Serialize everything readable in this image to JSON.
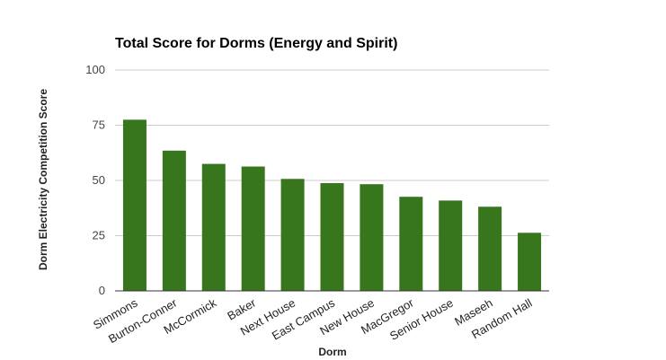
{
  "chart_data": {
    "type": "bar",
    "title": "Total Score for Dorms (Energy and Spirit)",
    "xlabel": "Dorm",
    "ylabel": "Dorm Electricity Competition Score",
    "ylim": [
      0,
      100
    ],
    "yticks": [
      0,
      25,
      50,
      75,
      100
    ],
    "grid": true,
    "legend": "none",
    "categories": [
      "Simmons",
      "Burton-Conner",
      "McCormick",
      "Baker",
      "Next House",
      "East Campus",
      "New House",
      "MacGregor",
      "Senior House",
      "Maseeh",
      "Random Hall"
    ],
    "values": [
      77.5,
      63.5,
      57.5,
      56.3,
      50.7,
      48.8,
      48.3,
      42.6,
      40.9,
      38.1,
      26.3
    ],
    "bar_color": "#38761d"
  }
}
